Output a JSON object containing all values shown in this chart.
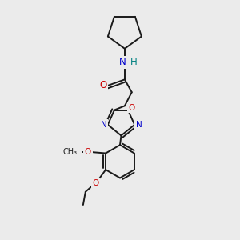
{
  "background_color": "#ebebeb",
  "bond_color": "#1a1a1a",
  "N_color": "#0000cc",
  "O_color": "#cc0000",
  "NH_color": "#008080",
  "figsize": [
    3.0,
    3.0
  ],
  "dpi": 100,
  "xlim": [
    0,
    10
  ],
  "ylim": [
    0,
    10
  ]
}
